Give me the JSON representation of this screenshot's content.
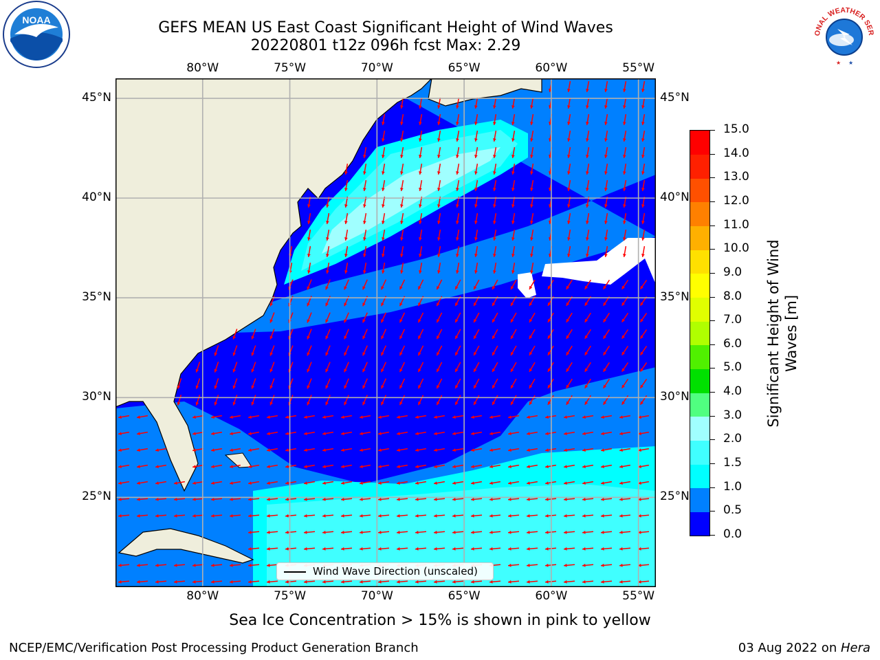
{
  "titles": {
    "line1": "GEFS MEAN US East Coast Significant Height of Wind Waves",
    "line2": "20220801 t12z 096h fcst   Max: 2.29"
  },
  "logos": {
    "left": {
      "name": "noaa-logo",
      "text": "NOAA"
    },
    "right": {
      "name": "nws-logo",
      "text": "NATIONAL WEATHER SERVICE"
    }
  },
  "chart_data": {
    "type": "heatmap",
    "projection": "lat-lon",
    "lon_range": [
      -85,
      -54
    ],
    "lat_range": [
      20.5,
      46
    ],
    "lon_ticks": [
      "80°W",
      "75°W",
      "70°W",
      "65°W",
      "60°W",
      "55°W"
    ],
    "lon_tick_values": [
      -80,
      -75,
      -70,
      -65,
      -60,
      -55
    ],
    "lat_ticks": [
      "45°N",
      "40°N",
      "35°N",
      "30°N",
      "25°N"
    ],
    "lat_tick_values": [
      45,
      40,
      35,
      30,
      25
    ],
    "grid": true,
    "colorbar": {
      "label_line1": "Significant Height of Wind",
      "label_line2": "Waves [m]",
      "tick_labels": [
        "0.0",
        "0.5",
        "1.0",
        "1.5",
        "2.0",
        "3.0",
        "4.0",
        "5.0",
        "6.0",
        "7.0",
        "8.0",
        "9.0",
        "10.0",
        "11.0",
        "12.0",
        "13.0",
        "14.0",
        "15.0"
      ],
      "levels": [
        0.0,
        0.5,
        1.0,
        1.5,
        2.0,
        3.0,
        4.0,
        5.0,
        6.0,
        7.0,
        8.0,
        9.0,
        10.0,
        11.0,
        12.0,
        13.0,
        14.0,
        15.0
      ],
      "colors": [
        "#0000ff",
        "#0080ff",
        "#00ffff",
        "#40ffff",
        "#a0ffff",
        "#50ff80",
        "#00e000",
        "#50f000",
        "#b0ff00",
        "#e0ff00",
        "#ffff00",
        "#ffe000",
        "#ffb000",
        "#ff8000",
        "#ff5000",
        "#ff2000",
        "#ff0000"
      ]
    },
    "max_value": 2.29,
    "land_color": "#efeedc",
    "missing_color": "#ffffff",
    "arrow_color": "#ff0000",
    "legend": {
      "label": "Wind Wave Direction (unscaled)",
      "position": "lower-center"
    }
  },
  "footnote": "Sea Ice Concentration > 15% is shown in pink to yellow",
  "footer": {
    "left": "NCEP/EMC/Verification Post Processing Product Generation Branch",
    "right_prefix": "03 Aug 2022 on ",
    "right_host": "Hera"
  }
}
